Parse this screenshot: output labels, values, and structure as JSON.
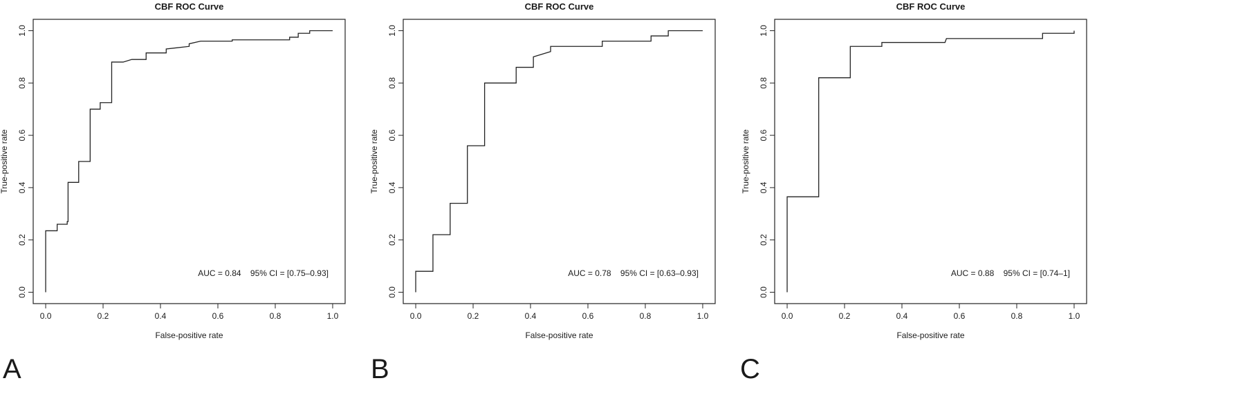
{
  "chart_data": [
    {
      "type": "line",
      "panel_letter": "A",
      "title": "CBF ROC Curve",
      "xlabel": "False-positive rate",
      "ylabel": "True-positive rate",
      "xlim": [
        0,
        1
      ],
      "ylim": [
        0,
        1
      ],
      "xticks": [
        "0.0",
        "0.2",
        "0.4",
        "0.6",
        "0.8",
        "1.0"
      ],
      "yticks": [
        "0.0",
        "0.2",
        "0.4",
        "0.6",
        "0.8",
        "1.0"
      ],
      "annotation": "AUC = 0.84    95% CI = [0.75–0.93]",
      "grid": false,
      "series": [
        {
          "step": true,
          "points": [
            [
              0.0,
              0.0
            ],
            [
              0.0,
              0.235
            ],
            [
              0.04,
              0.235
            ],
            [
              0.04,
              0.26
            ],
            [
              0.075,
              0.26
            ],
            [
              0.075,
              0.27
            ],
            [
              0.078,
              0.27
            ],
            [
              0.078,
              0.42
            ],
            [
              0.115,
              0.42
            ],
            [
              0.115,
              0.5
            ],
            [
              0.155,
              0.5
            ],
            [
              0.155,
              0.7
            ],
            [
              0.19,
              0.7
            ],
            [
              0.19,
              0.725
            ],
            [
              0.23,
              0.725
            ],
            [
              0.23,
              0.88
            ],
            [
              0.27,
              0.88
            ],
            [
              0.3,
              0.89
            ],
            [
              0.35,
              0.89
            ],
            [
              0.35,
              0.915
            ],
            [
              0.42,
              0.915
            ],
            [
              0.42,
              0.93
            ],
            [
              0.5,
              0.94
            ],
            [
              0.5,
              0.95
            ],
            [
              0.54,
              0.96
            ],
            [
              0.65,
              0.96
            ],
            [
              0.65,
              0.965
            ],
            [
              0.85,
              0.965
            ],
            [
              0.85,
              0.975
            ],
            [
              0.88,
              0.975
            ],
            [
              0.88,
              0.99
            ],
            [
              0.92,
              0.99
            ],
            [
              0.92,
              1.0
            ],
            [
              1.0,
              1.0
            ]
          ]
        }
      ]
    },
    {
      "type": "line",
      "panel_letter": "B",
      "title": "CBF ROC Curve",
      "xlabel": "False-positive rate",
      "ylabel": "True-positive rate",
      "xlim": [
        0,
        1
      ],
      "ylim": [
        0,
        1
      ],
      "xticks": [
        "0.0",
        "0.2",
        "0.4",
        "0.6",
        "0.8",
        "1.0"
      ],
      "yticks": [
        "0.0",
        "0.2",
        "0.4",
        "0.6",
        "0.8",
        "1.0"
      ],
      "annotation": "AUC = 0.78    95% CI = [0.63–0.93]",
      "grid": false,
      "series": [
        {
          "step": true,
          "points": [
            [
              0.0,
              0.0
            ],
            [
              0.0,
              0.08
            ],
            [
              0.06,
              0.08
            ],
            [
              0.06,
              0.22
            ],
            [
              0.12,
              0.22
            ],
            [
              0.12,
              0.34
            ],
            [
              0.18,
              0.34
            ],
            [
              0.18,
              0.56
            ],
            [
              0.24,
              0.56
            ],
            [
              0.24,
              0.8
            ],
            [
              0.35,
              0.8
            ],
            [
              0.35,
              0.86
            ],
            [
              0.41,
              0.86
            ],
            [
              0.41,
              0.9
            ],
            [
              0.47,
              0.92
            ],
            [
              0.47,
              0.94
            ],
            [
              0.65,
              0.94
            ],
            [
              0.65,
              0.96
            ],
            [
              0.82,
              0.96
            ],
            [
              0.82,
              0.98
            ],
            [
              0.88,
              0.98
            ],
            [
              0.88,
              1.0
            ],
            [
              1.0,
              1.0
            ]
          ]
        }
      ]
    },
    {
      "type": "line",
      "panel_letter": "C",
      "title": "CBF ROC Curve",
      "xlabel": "False-positive rate",
      "ylabel": "True-positive rate",
      "xlim": [
        0,
        1
      ],
      "ylim": [
        0,
        1
      ],
      "xticks": [
        "0.0",
        "0.2",
        "0.4",
        "0.6",
        "0.8",
        "1.0"
      ],
      "yticks": [
        "0.0",
        "0.2",
        "0.4",
        "0.6",
        "0.8",
        "1.0"
      ],
      "annotation": "AUC = 0.88    95% CI = [0.74–1]",
      "grid": false,
      "series": [
        {
          "step": true,
          "points": [
            [
              0.0,
              0.0
            ],
            [
              0.0,
              0.365
            ],
            [
              0.11,
              0.365
            ],
            [
              0.11,
              0.82
            ],
            [
              0.22,
              0.82
            ],
            [
              0.22,
              0.94
            ],
            [
              0.33,
              0.94
            ],
            [
              0.33,
              0.955
            ],
            [
              0.55,
              0.955
            ],
            [
              0.555,
              0.97
            ],
            [
              0.89,
              0.97
            ],
            [
              0.89,
              0.99
            ],
            [
              1.0,
              0.99
            ],
            [
              1.0,
              1.0
            ]
          ]
        }
      ]
    }
  ]
}
